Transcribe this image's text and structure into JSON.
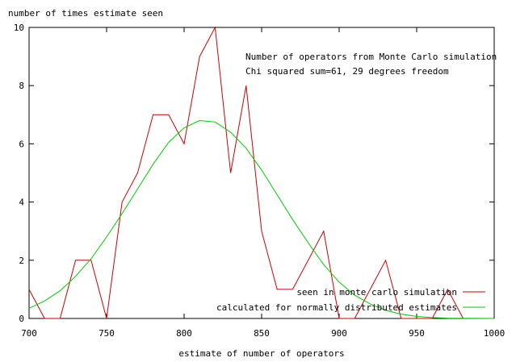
{
  "chart_data": {
    "type": "line",
    "title": "",
    "ylabel": "number of times estimate seen",
    "xlabel": "estimate of number of operators",
    "xlim": [
      700,
      1000
    ],
    "ylim": [
      0,
      10
    ],
    "x_ticks": [
      "700",
      "750",
      "800",
      "850",
      "900",
      "950",
      "1000"
    ],
    "y_ticks": [
      "0",
      "2",
      "4",
      "6",
      "8",
      "10"
    ],
    "grid": false,
    "legend_position": "bottom-right",
    "annotations": [
      "Number of operators from Monte Carlo simulation",
      "Chi squared sum=61, 29 degrees freedom"
    ],
    "series": [
      {
        "name": "seen in monte carlo simulation",
        "color": "#cc0000",
        "x": [
          700,
          710,
          720,
          730,
          740,
          750,
          760,
          770,
          780,
          790,
          800,
          810,
          820,
          830,
          840,
          850,
          860,
          870,
          880,
          890,
          900,
          910,
          920,
          930,
          940,
          950,
          960,
          970,
          980,
          990,
          1000
        ],
        "y": [
          1,
          0,
          0,
          2,
          2,
          0,
          4,
          5,
          7,
          7,
          6,
          9,
          10,
          5,
          8,
          3,
          1,
          1,
          2,
          3,
          0,
          0,
          1,
          2,
          0,
          0,
          0,
          1,
          0,
          0,
          0
        ]
      },
      {
        "name": "calculated for normally distributed estimates",
        "color": "#00cc00",
        "x": [
          700,
          710,
          720,
          730,
          740,
          750,
          760,
          770,
          780,
          790,
          800,
          810,
          820,
          830,
          840,
          850,
          860,
          870,
          880,
          890,
          900,
          910,
          920,
          930,
          940,
          950,
          960,
          970,
          980,
          990,
          1000
        ],
        "y": [
          0.35,
          0.6,
          0.95,
          1.45,
          2.05,
          2.8,
          3.6,
          4.45,
          5.3,
          6.05,
          6.55,
          6.8,
          6.75,
          6.4,
          5.85,
          5.1,
          4.25,
          3.4,
          2.6,
          1.85,
          1.25,
          0.8,
          0.5,
          0.28,
          0.15,
          0.07,
          0.03,
          0.01,
          0.005,
          0.002,
          0.001
        ]
      }
    ]
  }
}
